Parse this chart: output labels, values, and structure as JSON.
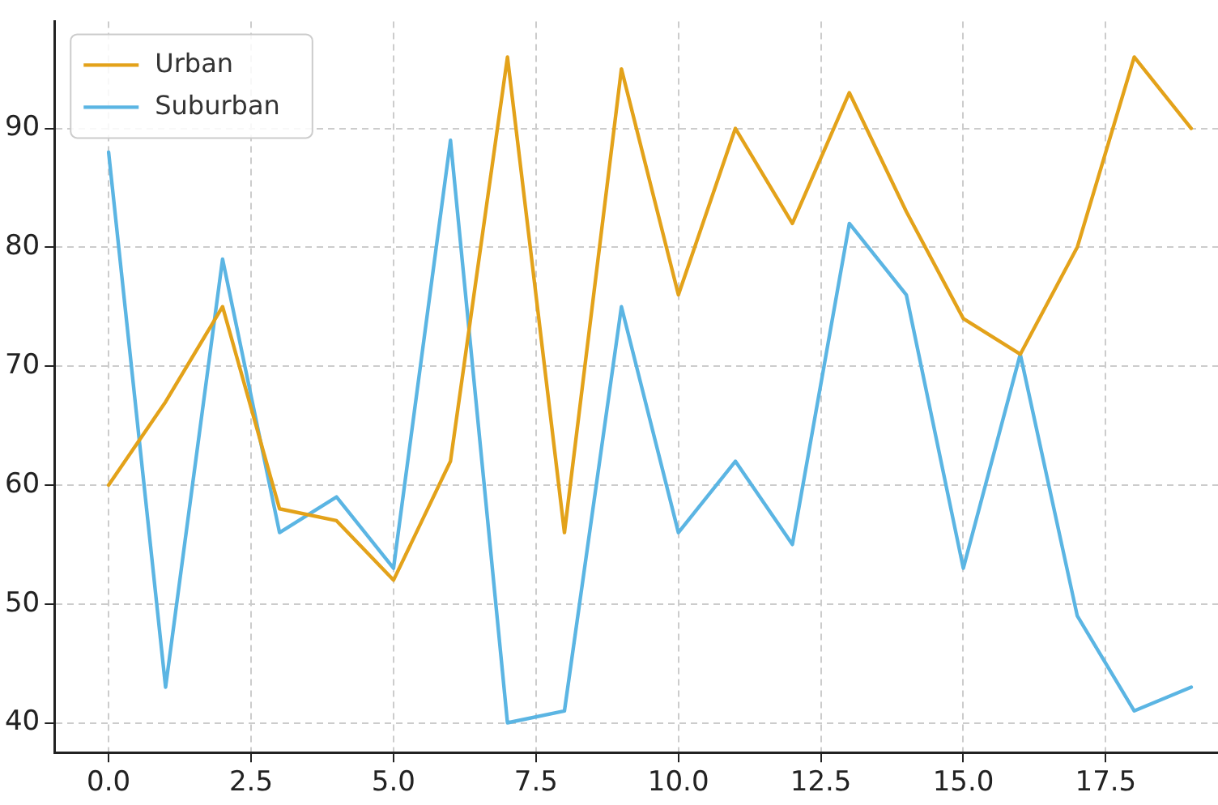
{
  "chart_data": {
    "type": "line",
    "x": [
      0,
      1,
      2,
      3,
      4,
      5,
      6,
      7,
      8,
      9,
      10,
      11,
      12,
      13,
      14,
      15,
      16,
      17,
      18,
      19
    ],
    "series": [
      {
        "name": "Urban",
        "color": "#e3a21a",
        "values": [
          60,
          67,
          75,
          58,
          57,
          52,
          62,
          96,
          56,
          95,
          76,
          90,
          82,
          93,
          83,
          74,
          71,
          80,
          96,
          90
        ]
      },
      {
        "name": "Suburban",
        "color": "#5bb5e3",
        "values": [
          88,
          43,
          79,
          56,
          59,
          53,
          89,
          40,
          41,
          75,
          56,
          62,
          55,
          82,
          76,
          53,
          71,
          49,
          41,
          43
        ]
      }
    ],
    "xlim": [
      -0.95,
      19.47
    ],
    "xticks": [
      {
        "value": 0,
        "label": "0.0"
      },
      {
        "value": 2.5,
        "label": "2.5"
      },
      {
        "value": 5,
        "label": "5.0"
      },
      {
        "value": 7.5,
        "label": "7.5"
      },
      {
        "value": 10,
        "label": "10.0"
      },
      {
        "value": 12.5,
        "label": "12.5"
      },
      {
        "value": 15,
        "label": "15.0"
      },
      {
        "value": 17.5,
        "label": "17.5"
      }
    ],
    "ylim": [
      37.5,
      99
    ],
    "yticks": [
      40,
      50,
      60,
      70,
      80,
      90
    ],
    "grid": true,
    "legend": "top left",
    "marker": "none",
    "line_style": "solid"
  }
}
